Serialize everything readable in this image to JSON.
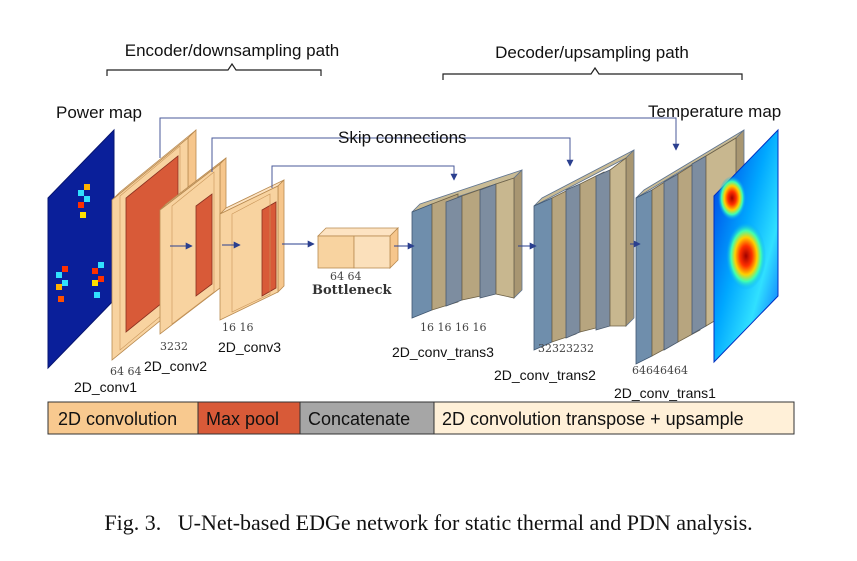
{
  "colors": {
    "conv": "#f8d3a0",
    "conv_dark": "#f2b77a",
    "pool": "#d85a38",
    "concat": "#9a9a9a",
    "transpose": "#fff0d8",
    "decoder_blue": "#6f8eac",
    "arrow": "#2a3f8f",
    "skip_arrow": "#4a5a9a"
  },
  "labels": {
    "encoder_path": "Encoder/downsampling path",
    "decoder_path": "Decoder/upsampling path",
    "power_map": "Power map",
    "temperature_map": "Temperature map",
    "skip_connections": "Skip connections",
    "bottleneck": "Bottleneck"
  },
  "layers": {
    "conv1": {
      "name": "2D_conv1",
      "dims": "64 64"
    },
    "conv2": {
      "name": "2D_conv2",
      "dims": "3232"
    },
    "conv3": {
      "name": "2D_conv3",
      "dims": "16 16"
    },
    "bottleneck_dims": "64 64",
    "trans3": {
      "name": "2D_conv_trans3",
      "dims": "16 16 16 16"
    },
    "trans2": {
      "name": "2D_conv_trans2",
      "dims": "32323232"
    },
    "trans1": {
      "name": "2D_conv_trans1",
      "dims": "64646464"
    }
  },
  "legend": {
    "items": [
      {
        "label": "2D convolution",
        "color": "#f8c98f"
      },
      {
        "label": "Max pool",
        "color": "#d85a38"
      },
      {
        "label": "Concatenate",
        "color": "#a6a6a6"
      },
      {
        "label": "2D convolution transpose + upsample",
        "color": "#fff0d8"
      }
    ]
  },
  "caption": {
    "prefix": "Fig. 3.",
    "text": "U-Net-based EDGe network for static thermal and PDN analysis."
  }
}
